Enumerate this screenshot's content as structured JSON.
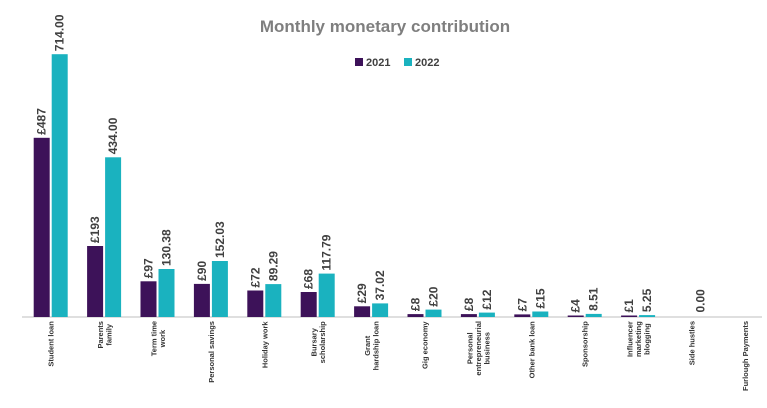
{
  "chart_data": {
    "type": "bar",
    "title": "Monthly monetary contribution",
    "legend_position": "top-center",
    "grid": false,
    "ylim": [
      0,
      720
    ],
    "categories": [
      "Student loan",
      "Parents\nfamily",
      "Term time\nwork",
      "Personal savings",
      "Holiday work",
      "Bursary\nscholarship",
      "Grant\nhardship loan",
      "Gig economy",
      "Personal\nentrepreneurial\nbusiness",
      "Other bank loan",
      "Sponsorship",
      "Influencer\nmarketing\nblogging",
      "Side hustles",
      "Furlough Payments"
    ],
    "series": [
      {
        "name": "2021",
        "color": "#3d1259",
        "values": [
          487,
          193,
          97,
          90,
          72,
          68,
          29,
          8,
          8,
          7,
          4,
          1,
          null,
          null
        ],
        "labels": [
          "£487",
          "£193",
          "£97",
          "£90",
          "£72",
          "£68",
          "£29",
          "£8",
          "£8",
          "£7",
          "£4",
          "£1",
          "",
          ""
        ]
      },
      {
        "name": "2022",
        "color": "#1ab2bf",
        "values": [
          714.0,
          434.0,
          130.38,
          152.03,
          89.29,
          117.79,
          37.02,
          20,
          12,
          15,
          8.51,
          5.25,
          0.0,
          null
        ],
        "labels": [
          "714.00",
          "434.00",
          "130.38",
          "152.03",
          "89.29",
          "117.79",
          "37.02",
          "£20",
          "£12",
          "£15",
          "8.51",
          "5.25",
          "0.00",
          ""
        ]
      }
    ]
  }
}
